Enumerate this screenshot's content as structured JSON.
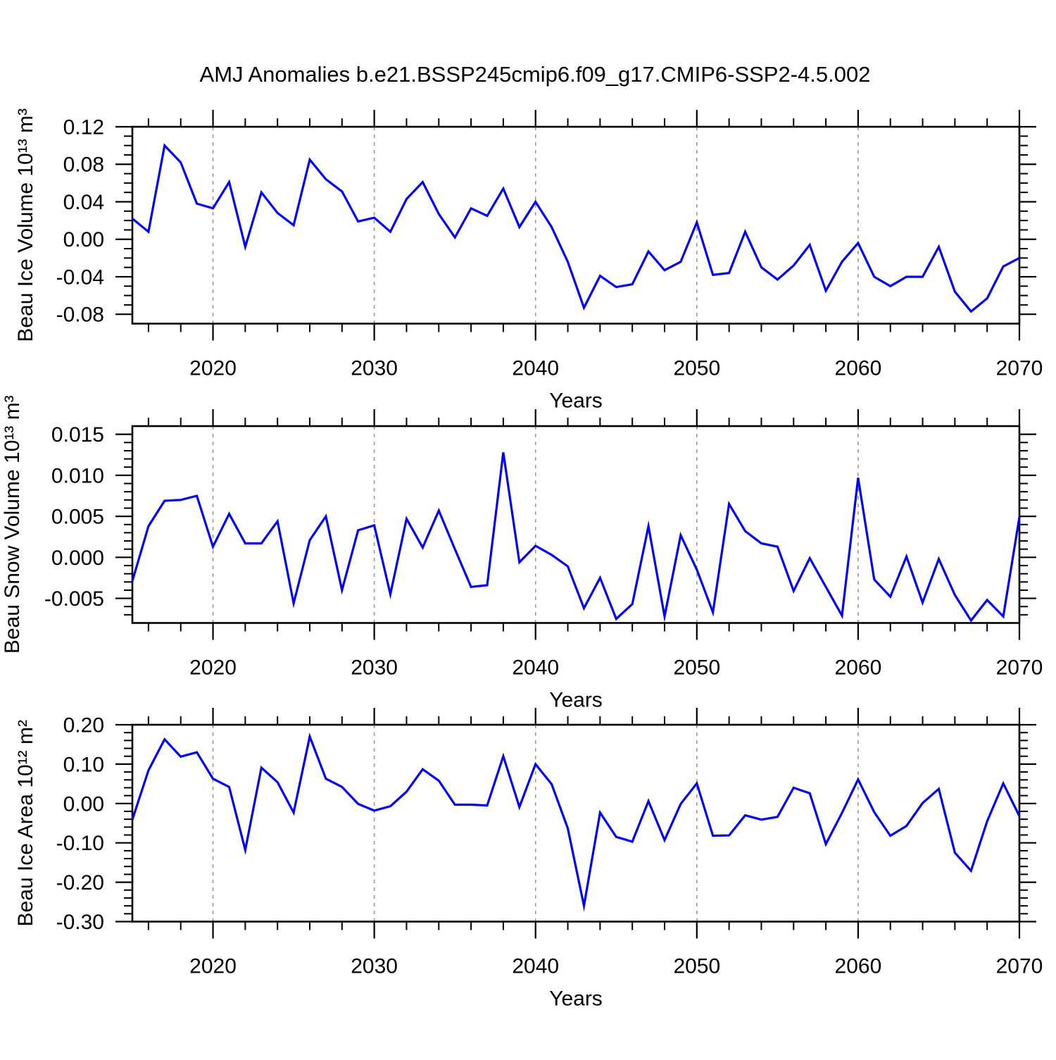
{
  "title": "AMJ Anomalies b.e21.BSSP245cmip6.f09_g17.CMIP6-SSP2-4.5.002",
  "colors": {
    "line": "#0000ff",
    "grid": "#999999",
    "axis": "#000000",
    "background": "#ffffff",
    "text": "#000000"
  },
  "chart_data": [
    {
      "type": "line",
      "name": "beau-ice-volume",
      "ylabel": "Beau Ice Volume 10¹³ m³",
      "xlabel": "Years",
      "xlim": [
        2015,
        2070
      ],
      "xticks": [
        2020,
        2030,
        2040,
        2050,
        2060,
        2070
      ],
      "xminor_step": 2,
      "grid_x": [
        2020,
        2030,
        2040,
        2050,
        2060
      ],
      "ylim": [
        -0.09,
        0.12
      ],
      "yticks": [
        {
          "v": 0.12,
          "label": "0.12"
        },
        {
          "v": 0.08,
          "label": "0.08"
        },
        {
          "v": 0.04,
          "label": "0.04"
        },
        {
          "v": 0.0,
          "label": "0.00"
        },
        {
          "v": -0.04,
          "label": "-0.04"
        },
        {
          "v": -0.08,
          "label": "-0.08"
        }
      ],
      "yminor_step": 0.01,
      "x_start": 2015,
      "x_step": 1,
      "values": [
        0.022,
        0.008,
        0.1,
        0.082,
        0.038,
        0.033,
        0.061,
        -0.008,
        0.05,
        0.028,
        0.015,
        0.085,
        0.064,
        0.051,
        0.019,
        0.023,
        0.008,
        0.043,
        0.061,
        0.027,
        0.002,
        0.033,
        0.025,
        0.054,
        0.013,
        0.04,
        0.013,
        -0.024,
        -0.073,
        -0.039,
        -0.051,
        -0.048,
        -0.013,
        -0.033,
        -0.024,
        0.018,
        -0.038,
        -0.036,
        0.008,
        -0.03,
        -0.043,
        -0.028,
        -0.006,
        -0.055,
        -0.024,
        -0.004,
        -0.04,
        -0.05,
        -0.04,
        -0.04,
        -0.008,
        -0.056,
        -0.077,
        -0.063,
        -0.029,
        -0.02
      ]
    },
    {
      "type": "line",
      "name": "beau-snow-volume",
      "ylabel": "Beau Snow Volume 10¹³ m³",
      "xlabel": "Years",
      "xlim": [
        2015,
        2070
      ],
      "xticks": [
        2020,
        2030,
        2040,
        2050,
        2060,
        2070
      ],
      "xminor_step": 2,
      "grid_x": [
        2020,
        2030,
        2040,
        2050,
        2060
      ],
      "ylim": [
        -0.008,
        0.016
      ],
      "yticks": [
        {
          "v": 0.015,
          "label": "0.015"
        },
        {
          "v": 0.01,
          "label": "0.010"
        },
        {
          "v": 0.005,
          "label": "0.005"
        },
        {
          "v": 0.0,
          "label": "0.000"
        },
        {
          "v": -0.005,
          "label": "-0.005"
        }
      ],
      "yminor_step": 0.001,
      "x_start": 2015,
      "x_step": 1,
      "values": [
        -0.0029,
        0.0038,
        0.0069,
        0.007,
        0.0075,
        0.0013,
        0.0053,
        0.0017,
        0.0017,
        0.0044,
        -0.0056,
        0.0021,
        0.005,
        -0.004,
        0.0033,
        0.0039,
        -0.0045,
        0.0047,
        0.0012,
        0.0057,
        0.001,
        -0.0036,
        -0.0034,
        0.0128,
        -0.0006,
        0.0014,
        0.0003,
        -0.0011,
        -0.0062,
        -0.0025,
        -0.0075,
        -0.0057,
        0.0038,
        -0.0072,
        0.0027,
        -0.0015,
        -0.0067,
        0.0065,
        0.0032,
        0.0017,
        0.0013,
        -0.0041,
        -0.0001,
        -0.0036,
        -0.0071,
        0.0097,
        -0.0027,
        -0.0048,
        0.0001,
        -0.0055,
        -0.0002,
        -0.0046,
        -0.0077,
        -0.0052,
        -0.0072,
        0.0049
      ]
    },
    {
      "type": "line",
      "name": "beau-ice-area",
      "ylabel": "Beau Ice Area 10¹² m²",
      "xlabel": "Years",
      "xlim": [
        2015,
        2070
      ],
      "xticks": [
        2020,
        2030,
        2040,
        2050,
        2060,
        2070
      ],
      "xminor_step": 2,
      "grid_x": [
        2020,
        2030,
        2040,
        2050,
        2060
      ],
      "ylim": [
        -0.3,
        0.2
      ],
      "yticks": [
        {
          "v": 0.2,
          "label": "0.20"
        },
        {
          "v": 0.1,
          "label": "0.10"
        },
        {
          "v": 0.0,
          "label": "0.00"
        },
        {
          "v": -0.1,
          "label": "-0.10"
        },
        {
          "v": -0.2,
          "label": "-0.20"
        },
        {
          "v": -0.3,
          "label": "-0.30"
        }
      ],
      "yminor_step": 0.02,
      "x_start": 2015,
      "x_step": 1,
      "values": [
        -0.041,
        0.084,
        0.163,
        0.119,
        0.13,
        0.063,
        0.042,
        -0.118,
        0.091,
        0.054,
        -0.023,
        0.17,
        0.063,
        0.042,
        -0.001,
        -0.018,
        -0.007,
        0.03,
        0.087,
        0.058,
        -0.003,
        -0.003,
        -0.005,
        0.12,
        -0.009,
        0.1,
        0.049,
        -0.063,
        -0.26,
        -0.023,
        -0.085,
        -0.097,
        0.006,
        -0.093,
        -0.001,
        0.051,
        -0.082,
        -0.081,
        -0.03,
        -0.041,
        -0.034,
        0.04,
        0.026,
        -0.103,
        -0.024,
        0.061,
        -0.022,
        -0.082,
        -0.057,
        0.001,
        0.037,
        -0.125,
        -0.171,
        -0.045,
        0.051,
        -0.032
      ]
    }
  ]
}
